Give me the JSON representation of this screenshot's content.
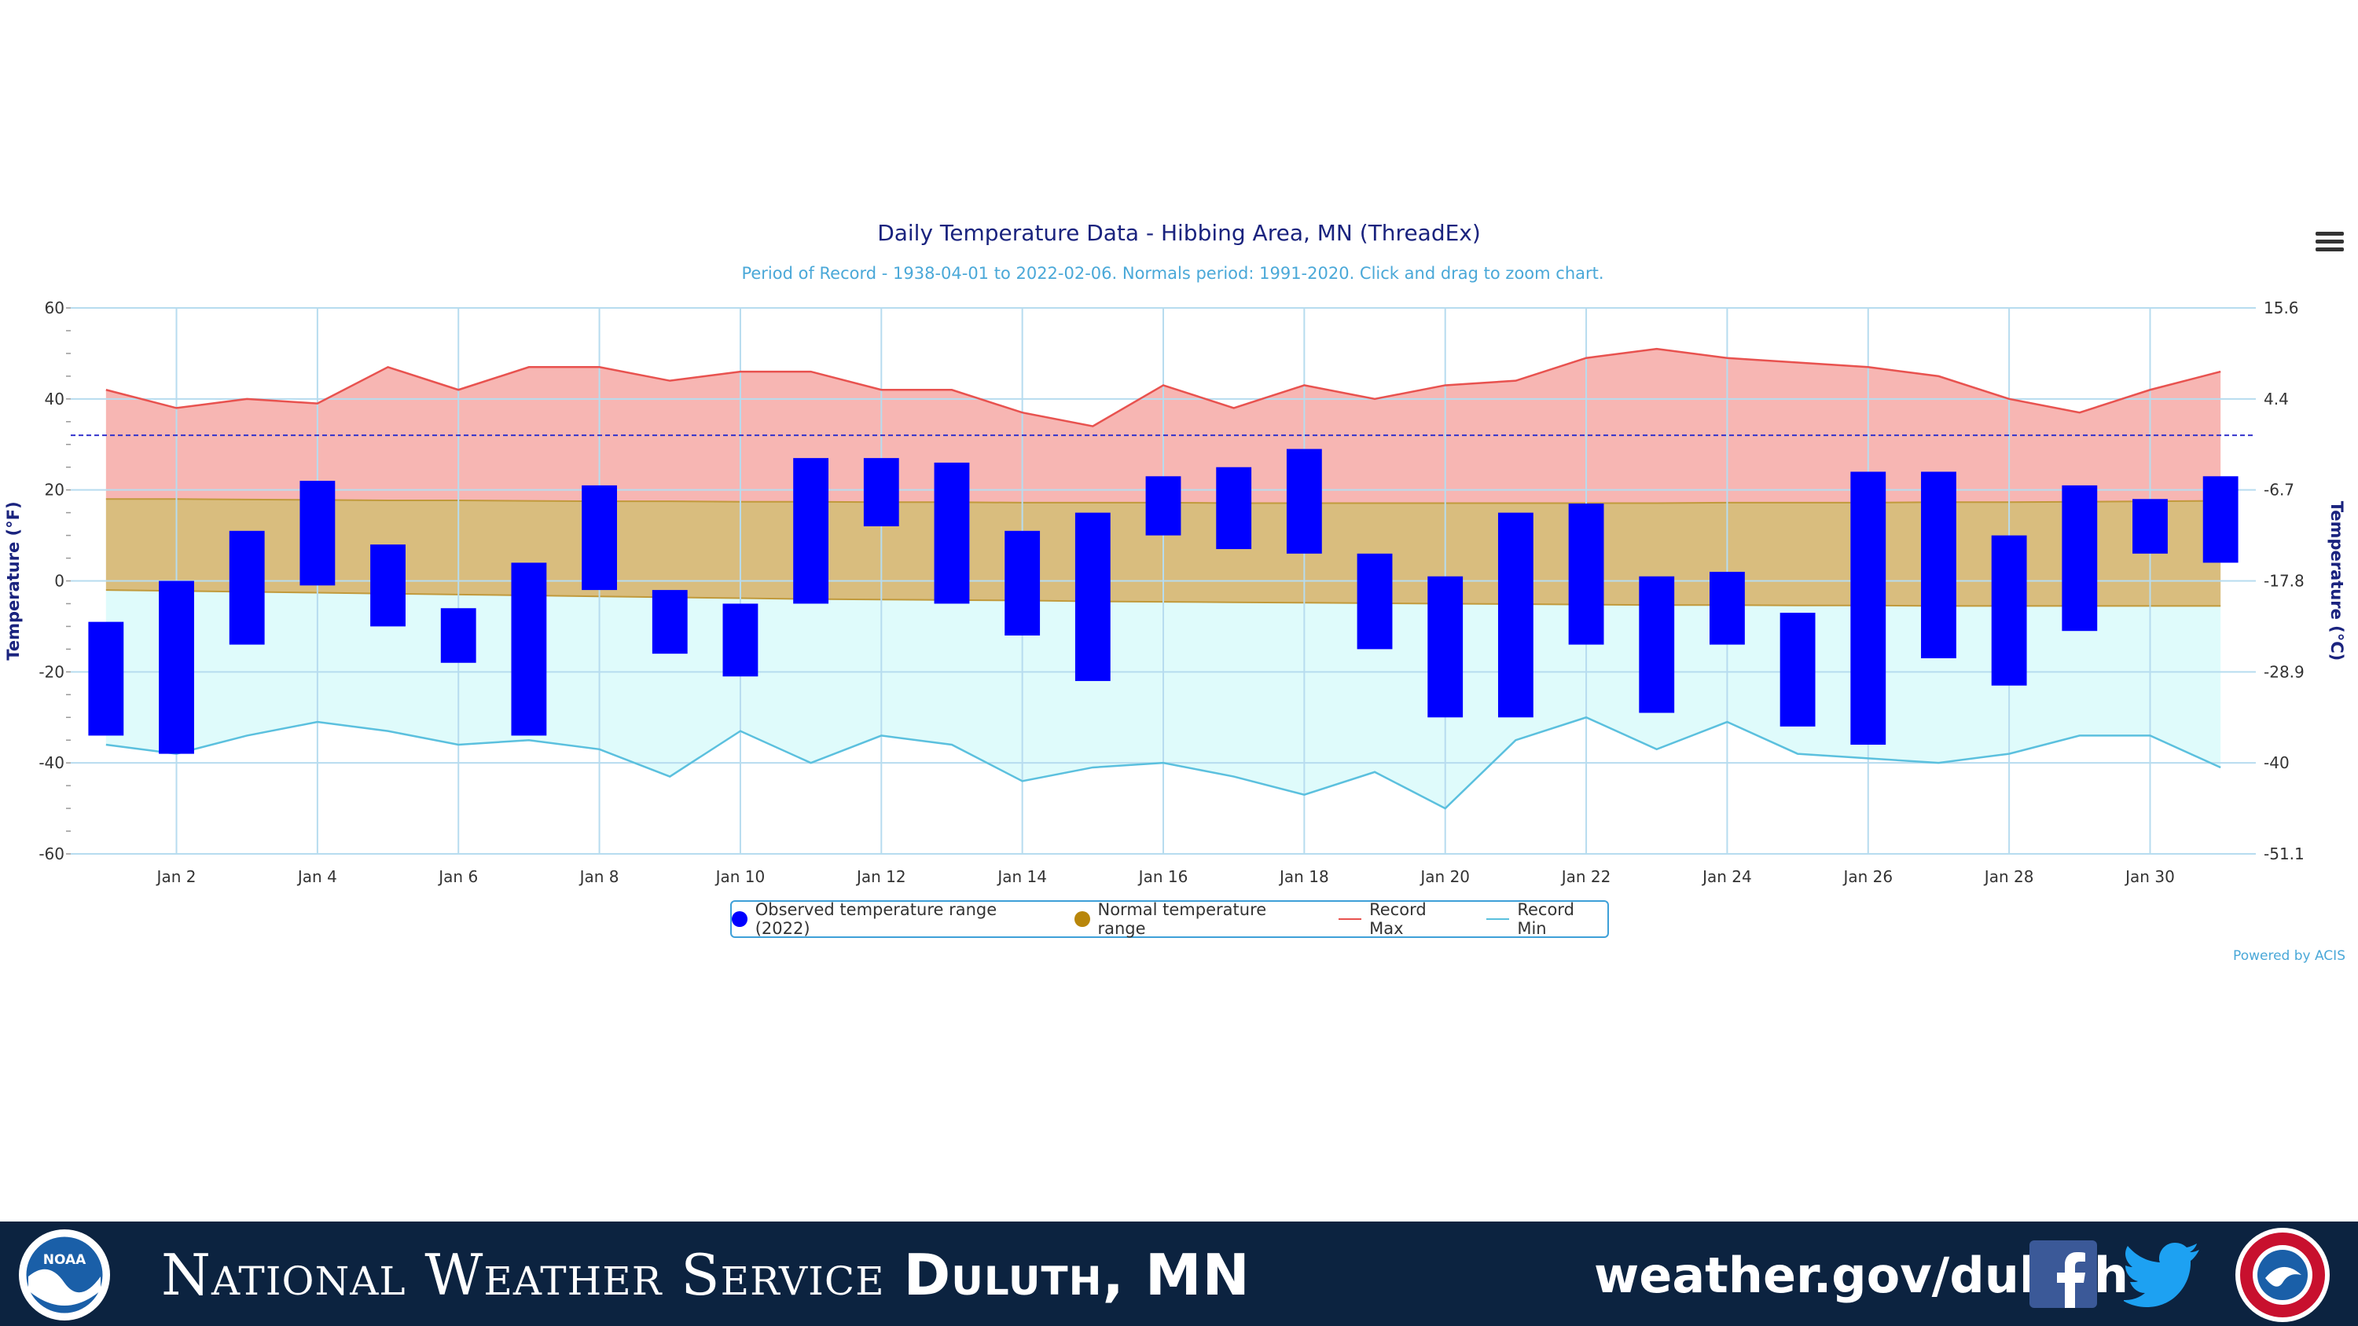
{
  "chart_data": {
    "type": "bar",
    "title": "Daily Temperature Data - Hibbing Area, MN (ThreadEx)",
    "subtitle": "Period of Record - 1938-04-01 to 2022-02-06. Normals period: 1991-2020. Click and drag to zoom chart.",
    "ylabel_left": "Temperature (°F)",
    "ylabel_right": "Temperature (°C)",
    "ylim": [
      -60,
      60
    ],
    "y_ticks": [
      60,
      40,
      20,
      0,
      -20,
      -40,
      -60
    ],
    "y_ticks_right": [
      "15.6",
      "4.4",
      "-6.7",
      "-17.8",
      "-28.9",
      "-40",
      "-51.1"
    ],
    "x_ticks": [
      "Jan 2",
      "Jan 4",
      "Jan 6",
      "Jan 8",
      "Jan 10",
      "Jan 12",
      "Jan 14",
      "Jan 16",
      "Jan 18",
      "Jan 20",
      "Jan 22",
      "Jan 24",
      "Jan 26",
      "Jan 28",
      "Jan 30"
    ],
    "freezing_line": 32,
    "grid": true,
    "legend_position": "bottom-center",
    "days": [
      1,
      2,
      3,
      4,
      5,
      6,
      7,
      8,
      9,
      10,
      11,
      12,
      13,
      14,
      15,
      16,
      17,
      18,
      19,
      20,
      21,
      22,
      23,
      24,
      25,
      26,
      27,
      28,
      29,
      30,
      31
    ],
    "series": [
      {
        "name": "Observed temperature range (2022)",
        "color": "#0000ff",
        "high": [
          -9,
          0,
          11,
          22,
          8,
          -6,
          4,
          21,
          -2,
          -5,
          27,
          27,
          26,
          11,
          15,
          23,
          25,
          29,
          6,
          1,
          15,
          17,
          1,
          2,
          -7,
          24,
          24,
          10,
          21,
          18,
          23
        ],
        "low": [
          -34,
          -38,
          -14,
          -1,
          -10,
          -18,
          -34,
          -2,
          -16,
          -21,
          -5,
          12,
          -5,
          -12,
          -22,
          10,
          7,
          6,
          -15,
          -30,
          -30,
          -14,
          -29,
          -14,
          -32,
          -36,
          -17,
          -23,
          -11,
          6,
          4
        ]
      },
      {
        "name": "Normal temperature range",
        "color": "#b8860b",
        "high": [
          18,
          18,
          17.9,
          17.8,
          17.7,
          17.7,
          17.6,
          17.5,
          17.5,
          17.4,
          17.4,
          17.3,
          17.3,
          17.2,
          17.2,
          17.2,
          17.1,
          17.1,
          17.1,
          17.1,
          17.1,
          17.1,
          17.1,
          17.2,
          17.2,
          17.2,
          17.3,
          17.3,
          17.4,
          17.5,
          17.6
        ],
        "low": [
          -2,
          -2.2,
          -2.4,
          -2.6,
          -2.8,
          -3,
          -3.2,
          -3.4,
          -3.6,
          -3.8,
          -4,
          -4.1,
          -4.2,
          -4.3,
          -4.5,
          -4.6,
          -4.7,
          -4.8,
          -4.9,
          -5,
          -5.1,
          -5.2,
          -5.3,
          -5.3,
          -5.4,
          -5.4,
          -5.5,
          -5.5,
          -5.5,
          -5.5,
          -5.5
        ]
      },
      {
        "name": "Record Max",
        "color": "#e8524f",
        "values": [
          42,
          38,
          40,
          39,
          47,
          42,
          47,
          47,
          44,
          46,
          46,
          42,
          42,
          37,
          34,
          43,
          38,
          43,
          40,
          43,
          44,
          49,
          51,
          49,
          48,
          47,
          45,
          40,
          37,
          42,
          46
        ]
      },
      {
        "name": "Record Min",
        "color": "#5bc0de",
        "values": [
          -36,
          -38,
          -34,
          -31,
          -33,
          -36,
          -35,
          -37,
          -43,
          -33,
          -40,
          -34,
          -36,
          -44,
          -41,
          -40,
          -43,
          -47,
          -42,
          -50,
          -35,
          -30,
          -37,
          -31,
          -38,
          -39,
          -40,
          -38,
          -34,
          -34,
          -41
        ]
      }
    ]
  },
  "legend": [
    {
      "label": "Observed temperature range (2022)",
      "color": "#0000ff",
      "kind": "dot"
    },
    {
      "label": "Normal temperature range",
      "color": "#b8860b",
      "kind": "dot"
    },
    {
      "label": "Record Max",
      "color": "#e8524f",
      "kind": "line"
    },
    {
      "label": "Record Min",
      "color": "#5bc0de",
      "kind": "line"
    }
  ],
  "credits": "Powered by ACIS",
  "footer": {
    "org_prefix": "National Weather Service",
    "org_office": "Duluth, MN",
    "site": "weather.gov/duluth",
    "noaa_label": "NOAA",
    "background": "#0c2340"
  }
}
